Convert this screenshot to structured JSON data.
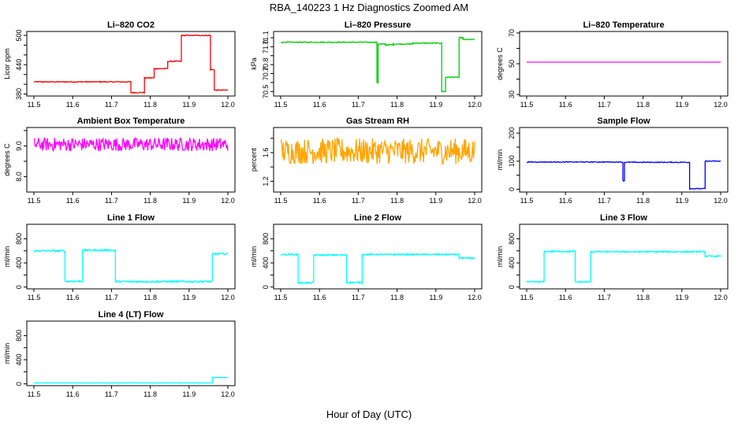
{
  "figure_title": "RBA_140223  1 Hz Diagnostics Zoomed AM",
  "xlabel": "Hour of Day (UTC)",
  "colors": {
    "co2": "#ff0000",
    "pressure": "#00cc00",
    "temperature": "#ff00ff",
    "box_temp": "#ff00ff",
    "rh": "#ffa500",
    "sample_flow": "#0000ff",
    "line_flow": "#00ffff"
  },
  "chart_data": [
    {
      "type": "line",
      "title": "Li–820 CO2",
      "ylabel": "Licor ppm",
      "color_key": "co2",
      "xlim": [
        11.5,
        12.0
      ],
      "ylim": [
        376,
        508
      ],
      "yticks": [
        380,
        400,
        420,
        440,
        460,
        480,
        500
      ],
      "ytick_labels": [
        "380",
        "",
        "",
        "440",
        "",
        "",
        "500"
      ],
      "xticks": [
        11.5,
        11.6,
        11.7,
        11.8,
        11.9,
        12.0
      ],
      "xtick_labels": [
        "11.5",
        "11.6",
        "11.7",
        "11.8",
        "11.9",
        "12.0"
      ],
      "segments": [
        [
          11.5,
          11.75,
          405
        ],
        [
          11.75,
          11.785,
          383
        ],
        [
          11.785,
          11.81,
          413
        ],
        [
          11.81,
          11.845,
          432
        ],
        [
          11.845,
          11.88,
          447
        ],
        [
          11.88,
          11.955,
          500
        ],
        [
          11.955,
          11.965,
          430
        ],
        [
          11.965,
          12.0,
          388
        ]
      ],
      "noise": 1.0
    },
    {
      "type": "line",
      "title": "Li–820 Pressure",
      "ylabel": "kPa",
      "color_key": "pressure",
      "xlim": [
        11.5,
        12.0
      ],
      "ylim": [
        70.45,
        71.17
      ],
      "yticks": [
        70.5,
        70.6,
        70.7,
        70.8,
        70.9,
        71.0,
        71.1
      ],
      "ytick_labels": [
        "70.5",
        "",
        "70.7",
        "70.8",
        "",
        "71.0",
        "71.1"
      ],
      "xticks": [
        11.5,
        11.6,
        11.7,
        11.8,
        11.9,
        12.0
      ],
      "xtick_labels": [
        "11.5",
        "11.6",
        "11.7",
        "11.8",
        "11.9",
        "12.0"
      ],
      "segments": [
        [
          11.5,
          11.748,
          71.05
        ],
        [
          11.748,
          11.751,
          70.6
        ],
        [
          11.751,
          11.77,
          71.03
        ],
        [
          11.77,
          11.79,
          71.02
        ],
        [
          11.79,
          11.84,
          71.03
        ],
        [
          11.84,
          11.915,
          71.04
        ],
        [
          11.915,
          11.925,
          70.5
        ],
        [
          11.925,
          11.96,
          70.66
        ],
        [
          11.96,
          11.97,
          71.1
        ],
        [
          11.97,
          12.0,
          71.08
        ]
      ],
      "noise": 0.005
    },
    {
      "type": "line",
      "title": "Li–820 Temperature",
      "ylabel": "degrees C",
      "color_key": "temperature",
      "xlim": [
        11.5,
        12.0
      ],
      "ylim": [
        29,
        71
      ],
      "yticks": [
        30,
        40,
        50,
        60,
        70
      ],
      "ytick_labels": [
        "30",
        "",
        "50",
        "",
        "70"
      ],
      "xticks": [
        11.5,
        11.6,
        11.7,
        11.8,
        11.9,
        12.0
      ],
      "xtick_labels": [
        "11.5",
        "11.6",
        "11.7",
        "11.8",
        "11.9",
        "12.0"
      ],
      "segments": [
        [
          11.5,
          12.0,
          51.0
        ]
      ],
      "noise": 0.0
    },
    {
      "type": "line",
      "title": "Ambient Box Temperature",
      "ylabel": "degrees C",
      "color_key": "box_temp",
      "xlim": [
        11.5,
        12.0
      ],
      "ylim": [
        7.5,
        9.6
      ],
      "yticks": [
        8.0,
        8.5,
        9.0,
        9.5
      ],
      "ytick_labels": [
        "8.0",
        "",
        "9.0",
        ""
      ],
      "xticks": [
        11.5,
        11.6,
        11.7,
        11.8,
        11.9,
        12.0
      ],
      "xtick_labels": [
        "11.5",
        "11.6",
        "11.7",
        "11.8",
        "11.9",
        "12.0"
      ],
      "segments": [
        [
          11.5,
          12.0,
          9.05
        ]
      ],
      "noise": 0.22
    },
    {
      "type": "line",
      "title": "Gas Stream RH",
      "ylabel": "percent",
      "color_key": "rh",
      "xlim": [
        11.5,
        12.0
      ],
      "ylim": [
        1.05,
        1.95
      ],
      "yticks": [
        1.2,
        1.4,
        1.6,
        1.8
      ],
      "ytick_labels": [
        "1.2",
        "",
        "1.6",
        ""
      ],
      "xticks": [
        11.5,
        11.6,
        11.7,
        11.8,
        11.9,
        12.0
      ],
      "xtick_labels": [
        "11.5",
        "11.6",
        "11.7",
        "11.8",
        "11.9",
        "12.0"
      ],
      "segments": [
        [
          11.5,
          12.0,
          1.62
        ]
      ],
      "noise": 0.18
    },
    {
      "type": "line",
      "title": "Sample Flow",
      "ylabel": "ml/min",
      "color_key": "sample_flow",
      "xlim": [
        11.5,
        12.0
      ],
      "ylim": [
        -10,
        220
      ],
      "yticks": [
        0,
        50,
        100,
        150,
        200
      ],
      "ytick_labels": [
        "0",
        "",
        "100",
        "",
        "200"
      ],
      "xticks": [
        11.5,
        11.6,
        11.7,
        11.8,
        11.9,
        12.0
      ],
      "xtick_labels": [
        "11.5",
        "11.6",
        "11.7",
        "11.8",
        "11.9",
        "12.0"
      ],
      "segments": [
        [
          11.5,
          11.748,
          97
        ],
        [
          11.748,
          11.752,
          30
        ],
        [
          11.752,
          11.92,
          96
        ],
        [
          11.92,
          11.96,
          2
        ],
        [
          11.96,
          12.0,
          100
        ]
      ],
      "noise": 1.5
    },
    {
      "type": "line",
      "title": "Line 1 Flow",
      "ylabel": "ml/min",
      "color_key": "line_flow",
      "xlim": [
        11.5,
        12.0
      ],
      "ylim": [
        -30,
        1040
      ],
      "yticks": [
        0,
        200,
        400,
        600,
        800
      ],
      "ytick_labels": [
        "0",
        "",
        "400",
        "",
        "800"
      ],
      "xticks": [
        11.5,
        11.6,
        11.7,
        11.8,
        11.9,
        12.0
      ],
      "xtick_labels": [
        "11.5",
        "11.6",
        "11.7",
        "11.8",
        "11.9",
        "12.0"
      ],
      "segments": [
        [
          11.5,
          11.58,
          600
        ],
        [
          11.58,
          11.625,
          95
        ],
        [
          11.625,
          11.71,
          610
        ],
        [
          11.71,
          11.96,
          90
        ],
        [
          11.96,
          12.0,
          550
        ]
      ],
      "noise": 15
    },
    {
      "type": "line",
      "title": "Line 2 Flow",
      "ylabel": "ml/min",
      "color_key": "line_flow",
      "xlim": [
        11.5,
        12.0
      ],
      "ylim": [
        -30,
        1040
      ],
      "yticks": [
        0,
        200,
        400,
        600,
        800
      ],
      "ytick_labels": [
        "0",
        "",
        "400",
        "",
        "800"
      ],
      "xticks": [
        11.5,
        11.6,
        11.7,
        11.8,
        11.9,
        12.0
      ],
      "xtick_labels": [
        "11.5",
        "11.6",
        "11.7",
        "11.8",
        "11.9",
        "12.0"
      ],
      "segments": [
        [
          11.5,
          11.545,
          540
        ],
        [
          11.545,
          11.585,
          70
        ],
        [
          11.585,
          11.67,
          530
        ],
        [
          11.67,
          11.71,
          75
        ],
        [
          11.71,
          11.96,
          540
        ],
        [
          11.96,
          12.0,
          480
        ]
      ],
      "noise": 12
    },
    {
      "type": "line",
      "title": "Line 3 Flow",
      "ylabel": "ml/min",
      "color_key": "line_flow",
      "xlim": [
        11.5,
        12.0
      ],
      "ylim": [
        -30,
        1040
      ],
      "yticks": [
        0,
        200,
        400,
        600,
        800
      ],
      "ytick_labels": [
        "0",
        "",
        "400",
        "",
        "800"
      ],
      "xticks": [
        11.5,
        11.6,
        11.7,
        11.8,
        11.9,
        12.0
      ],
      "xtick_labels": [
        "11.5",
        "11.6",
        "11.7",
        "11.8",
        "11.9",
        "12.0"
      ],
      "segments": [
        [
          11.5,
          11.545,
          85
        ],
        [
          11.545,
          11.625,
          590
        ],
        [
          11.625,
          11.665,
          85
        ],
        [
          11.665,
          11.96,
          585
        ],
        [
          11.96,
          12.0,
          510
        ]
      ],
      "noise": 12
    },
    {
      "type": "line",
      "title": "Line 4 (LT) Flow",
      "ylabel": "ml/min",
      "color_key": "line_flow",
      "xlim": [
        11.5,
        12.0
      ],
      "ylim": [
        -30,
        1040
      ],
      "yticks": [
        0,
        200,
        400,
        600,
        800
      ],
      "ytick_labels": [
        "0",
        "",
        "400",
        "",
        "800"
      ],
      "xticks": [
        11.5,
        11.6,
        11.7,
        11.8,
        11.9,
        12.0
      ],
      "xtick_labels": [
        "11.5",
        "11.6",
        "11.7",
        "11.8",
        "11.9",
        "12.0"
      ],
      "segments": [
        [
          11.5,
          11.96,
          15
        ],
        [
          11.96,
          12.0,
          105
        ]
      ],
      "noise": 2
    }
  ]
}
